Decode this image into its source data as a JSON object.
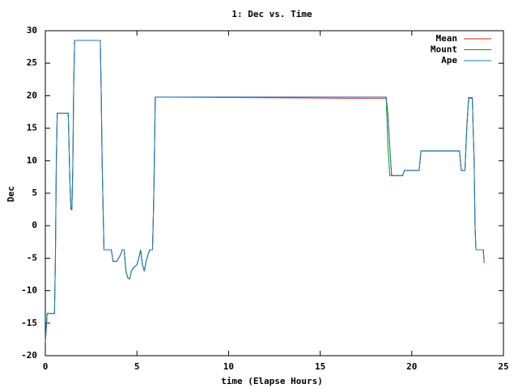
{
  "chart_data": {
    "type": "line",
    "title": "1: Dec vs. Time",
    "x_label": "time (Elapse Hours)",
    "y_label": "Dec",
    "xlim": [
      0,
      25
    ],
    "xticks": [
      0,
      5,
      10,
      15,
      20,
      25
    ],
    "ylim": [
      -20,
      30
    ],
    "yticks": [
      -20,
      -15,
      -10,
      -5,
      0,
      5,
      10,
      15,
      20,
      25,
      30
    ],
    "legend": "top-right",
    "x": [
      0,
      0.1,
      0.5,
      0.55,
      0.6,
      0.65,
      1.25,
      1.35,
      1.4,
      1.45,
      1.5,
      1.55,
      1.6,
      3.0,
      3.05,
      3.1,
      3.15,
      3.2,
      3.6,
      3.7,
      3.9,
      4.0,
      4.1,
      4.2,
      4.3,
      4.4,
      4.5,
      4.6,
      4.7,
      4.8,
      5.0,
      5.1,
      5.2,
      5.3,
      5.4,
      5.5,
      5.6,
      5.7,
      5.85,
      5.9,
      5.95,
      6.0,
      17.5,
      18.6,
      18.7,
      18.8,
      18.9,
      19.5,
      19.6,
      20.4,
      20.5,
      22.6,
      22.7,
      22.9,
      23.0,
      23.1,
      23.3,
      23.4,
      23.45,
      23.5,
      23.9,
      23.95
    ],
    "series": [
      {
        "name": "Mean",
        "color": "#e41a1c",
        "values": [
          -18,
          -13.5,
          -13.5,
          -5,
          10,
          17.3,
          17.3,
          6,
          2.5,
          2.5,
          9,
          22,
          28.5,
          28.5,
          20.5,
          10,
          3,
          -3.7,
          -3.7,
          -5.5,
          -5.5,
          -5,
          -4.5,
          -3.7,
          -3.7,
          -7,
          -8,
          -8.2,
          -7,
          -6.5,
          -6,
          -5,
          -3.7,
          -6,
          -7,
          -5.5,
          -4.5,
          -3.7,
          -3.7,
          2,
          10,
          19.8,
          19.6,
          19.6,
          17,
          12,
          7.7,
          7.7,
          8.5,
          8.5,
          11.5,
          11.5,
          8.5,
          8.5,
          15,
          19.6,
          19.6,
          10,
          0,
          -3.7,
          -3.7,
          -5.7
        ]
      },
      {
        "name": "Mount",
        "color": "#00a000",
        "values": [
          -18,
          -13.5,
          -13.5,
          -5,
          10,
          17.3,
          17.3,
          6,
          2.5,
          2.5,
          9,
          22,
          28.5,
          28.5,
          20.5,
          10,
          3,
          -3.7,
          -3.7,
          -5.5,
          -5.5,
          -5,
          -4.5,
          -3.7,
          -3.7,
          -7,
          -8,
          -8.2,
          -7,
          -6.5,
          -6,
          -5,
          -3.7,
          -6,
          -7,
          -5.5,
          -4.5,
          -3.7,
          -3.7,
          2,
          10,
          19.8,
          19.8,
          19.8,
          12,
          7.7,
          7.7,
          7.7,
          8.5,
          8.5,
          11.5,
          11.5,
          8.5,
          8.5,
          15,
          19.7,
          19.7,
          10,
          0,
          -3.7,
          -3.7,
          -5.7
        ]
      },
      {
        "name": "Ape",
        "color": "#1f78c8",
        "values": [
          -18,
          -13.5,
          -13.5,
          -5,
          10,
          17.3,
          17.3,
          6,
          2.5,
          2.5,
          9,
          22,
          28.5,
          28.5,
          20.5,
          10,
          3,
          -3.7,
          -3.7,
          -5.5,
          -5.5,
          -5,
          -4.5,
          -3.7,
          -3.7,
          -7,
          -8,
          -8.2,
          -7,
          -6.5,
          -6,
          -5,
          -3.7,
          -6,
          -7,
          -5.5,
          -4.5,
          -3.7,
          -3.7,
          2,
          10,
          19.8,
          19.8,
          19.8,
          17,
          12,
          7.7,
          7.7,
          8.5,
          8.5,
          11.5,
          11.5,
          8.5,
          8.5,
          15,
          19.7,
          19.7,
          10,
          0,
          -3.7,
          -3.7,
          -5.7
        ]
      }
    ]
  }
}
